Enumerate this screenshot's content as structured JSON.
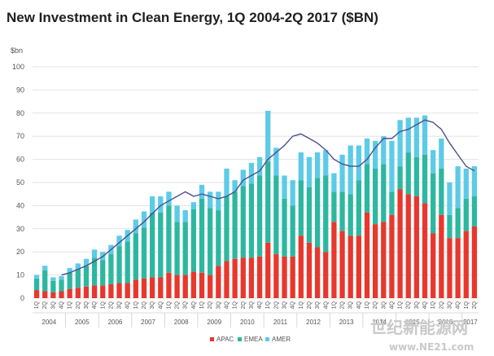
{
  "chart_data": {
    "type": "bar",
    "stacked": true,
    "title": "New Investment in Clean Energy, 1Q 2004-2Q 2017 ($BN)",
    "ylabel": "$bn",
    "ylim": [
      0,
      100
    ],
    "yticks": [
      0,
      10,
      20,
      30,
      40,
      50,
      60,
      70,
      80,
      90,
      100
    ],
    "grid": true,
    "legend_position": "bottom",
    "categories": [
      "1Q",
      "2Q",
      "3Q",
      "4Q",
      "1Q",
      "2Q",
      "3Q",
      "4Q",
      "1Q",
      "2Q",
      "3Q",
      "4Q",
      "1Q",
      "2Q",
      "3Q",
      "4Q",
      "1Q",
      "2Q",
      "3Q",
      "4Q",
      "1Q",
      "2Q",
      "3Q",
      "4Q",
      "1Q",
      "2Q",
      "3Q",
      "4Q",
      "1Q",
      "2Q",
      "3Q",
      "4Q",
      "1Q",
      "2Q",
      "3Q",
      "4Q",
      "1Q",
      "2Q",
      "3Q",
      "4Q",
      "1Q",
      "2Q",
      "3Q",
      "4Q",
      "1Q",
      "2Q",
      "3Q",
      "4Q",
      "1Q",
      "2Q",
      "3Q",
      "4Q",
      "1Q",
      "2Q"
    ],
    "year_labels": [
      "2004",
      "2005",
      "2006",
      "2007",
      "2008",
      "2009",
      "2010",
      "2011",
      "2012",
      "2013",
      "2014",
      "2015",
      "2016",
      "2017"
    ],
    "series": [
      {
        "name": "APAC",
        "color": "#e8372d",
        "values": [
          3.5,
          3,
          2.5,
          3,
          4,
          4.5,
          5,
          5.5,
          5.5,
          6,
          6.5,
          6.5,
          8,
          8.5,
          9,
          9,
          11,
          10,
          10,
          11.5,
          11,
          10,
          14,
          16,
          17,
          17.5,
          17.5,
          18,
          24,
          19,
          18,
          18,
          27,
          24,
          22,
          20,
          33,
          29,
          27,
          27,
          37,
          32,
          33,
          36,
          47,
          45,
          44,
          41,
          28,
          36,
          26,
          26,
          29,
          31
        ]
      },
      {
        "name": "EMEA",
        "color": "#2db7a0",
        "values": [
          5,
          9,
          5,
          5,
          7,
          8,
          9,
          12,
          11,
          13,
          16,
          18,
          20,
          22,
          28,
          28,
          29,
          23,
          23,
          27,
          32,
          29,
          24,
          28,
          29,
          31,
          32,
          35,
          35,
          34,
          25,
          22,
          24,
          24,
          30,
          33,
          13,
          17,
          18,
          24,
          21,
          24,
          25,
          10,
          10,
          18,
          17,
          21,
          26,
          20,
          10,
          13,
          14,
          13
        ]
      },
      {
        "name": "AMER",
        "color": "#5ccbe8",
        "values": [
          1.5,
          2,
          1.5,
          1.5,
          2,
          2.5,
          3,
          3.5,
          3.5,
          4,
          4.5,
          5,
          6,
          7,
          7,
          7,
          6,
          7,
          5,
          3,
          6,
          7,
          8,
          12,
          5,
          7,
          9,
          8,
          22,
          12,
          10,
          11,
          12,
          13,
          11,
          11,
          8,
          16,
          21,
          15,
          11,
          12,
          12,
          22,
          20,
          15,
          17,
          17,
          10,
          13,
          14,
          18,
          13,
          13
        ]
      },
      {
        "name": "",
        "color": "#4b4f8c",
        "type": "line",
        "values": [
          null,
          null,
          null,
          10,
          11,
          12.5,
          14,
          16,
          18,
          21,
          24,
          27,
          30,
          33,
          36.5,
          40,
          42,
          44,
          46,
          44,
          45,
          44,
          43,
          44,
          46,
          51,
          53,
          55,
          60,
          63,
          66,
          70,
          71,
          69,
          67,
          64,
          60,
          58,
          57,
          57,
          60,
          65,
          69,
          69,
          72,
          73,
          75,
          77,
          76,
          73,
          67,
          62,
          57,
          55
        ]
      }
    ]
  },
  "legend": {
    "apac": "APAC",
    "emea": "EMEA",
    "amer": "AMER"
  },
  "watermark": {
    "line1": "世纪新能源网",
    "line2": "www.NE21.com"
  }
}
